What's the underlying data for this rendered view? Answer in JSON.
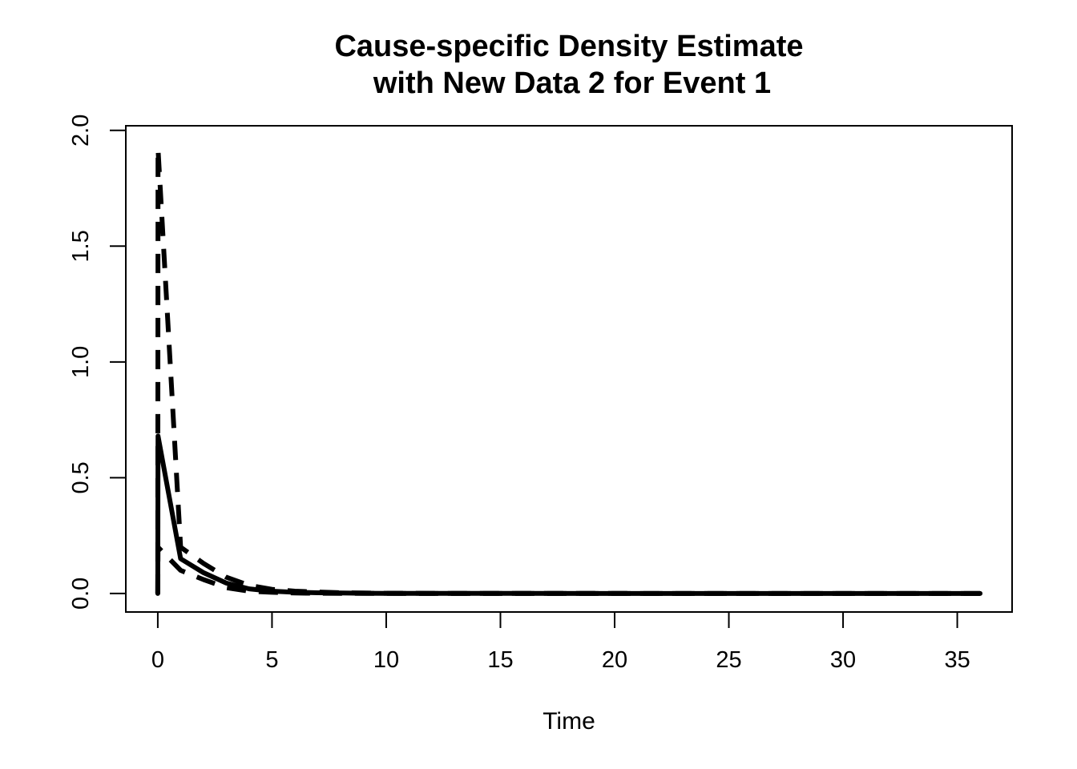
{
  "chart_data": {
    "type": "line",
    "title_lines": [
      "Cause-specific Density Estimate",
      "with New Data 2 for Event 1"
    ],
    "xlabel": "Time",
    "ylabel": "",
    "xlim": [
      -1.4,
      37.4
    ],
    "ylim": [
      -0.08,
      2.02
    ],
    "x_ticks": [
      0,
      5,
      10,
      15,
      20,
      25,
      30,
      35
    ],
    "y_ticks": [
      0.0,
      0.5,
      1.0,
      1.5,
      2.0
    ],
    "x_tick_labels": [
      "0",
      "5",
      "10",
      "15",
      "20",
      "25",
      "30",
      "35"
    ],
    "y_tick_labels": [
      "0.0",
      "0.5",
      "1.0",
      "1.5",
      "2.0"
    ],
    "grid": false,
    "legend": "none",
    "line_color": "#000000",
    "series": [
      {
        "style": "solid",
        "x": [
          0,
          0.01,
          1,
          2,
          3,
          4,
          5,
          6,
          7,
          8,
          9,
          10,
          12,
          15,
          20,
          25,
          30,
          36
        ],
        "y": [
          0,
          0.68,
          0.15,
          0.09,
          0.045,
          0.02,
          0.01,
          0.005,
          0.003,
          0.002,
          0.001,
          0.0005,
          0.0002,
          0.0001,
          0,
          0,
          0,
          0
        ]
      },
      {
        "style": "dashed",
        "x": [
          0,
          0.01,
          1,
          2,
          3,
          4,
          5,
          6,
          7,
          8,
          9,
          10,
          12,
          15,
          20,
          25,
          30,
          36
        ],
        "y": [
          0,
          1.92,
          0.2,
          0.13,
          0.07,
          0.035,
          0.018,
          0.01,
          0.006,
          0.003,
          0.002,
          0.001,
          0.0005,
          0.0002,
          0.0001,
          0,
          0,
          0
        ]
      },
      {
        "style": "dashed",
        "x": [
          0,
          0.01,
          1,
          2,
          3,
          4,
          5,
          6,
          7,
          8,
          9,
          10,
          12,
          15,
          20,
          25,
          30,
          36
        ],
        "y": [
          0,
          0.2,
          0.1,
          0.06,
          0.025,
          0.01,
          0.005,
          0.002,
          0.001,
          0.0005,
          0.0002,
          0.0001,
          0,
          0,
          0,
          0,
          0,
          0
        ]
      }
    ]
  }
}
